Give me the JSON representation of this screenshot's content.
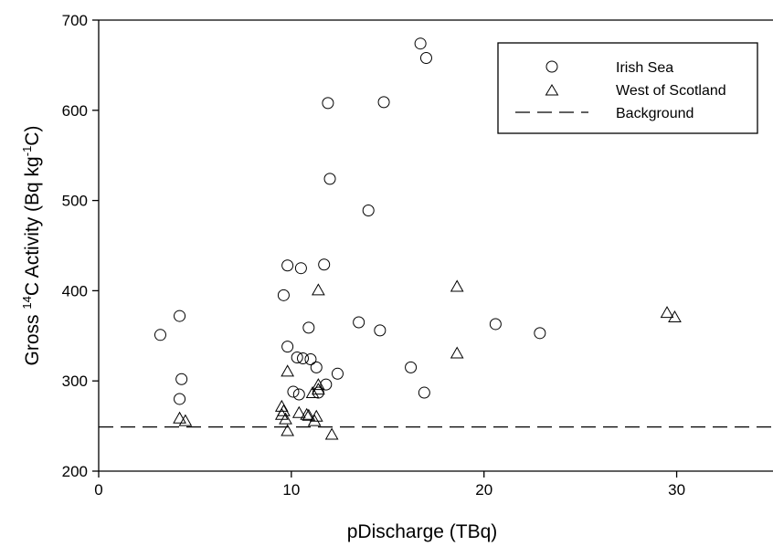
{
  "chart_data": {
    "type": "scatter",
    "xlabel": "pDischarge (TBq)",
    "ylabel_parts": [
      "Gross ",
      "14",
      "C Activity (Bq kg",
      "-1",
      "C)"
    ],
    "xlim": [
      0,
      35
    ],
    "ylim": [
      200,
      700
    ],
    "xticks": [
      0,
      10,
      20,
      30
    ],
    "yticks": [
      200,
      300,
      400,
      500,
      600,
      700
    ],
    "grid": false,
    "legend_position": "top-right",
    "series": [
      {
        "name": "Irish Sea",
        "marker": "circle",
        "points": [
          [
            3.2,
            351
          ],
          [
            4.2,
            372
          ],
          [
            4.3,
            302
          ],
          [
            4.2,
            280
          ],
          [
            9.6,
            395
          ],
          [
            9.8,
            428
          ],
          [
            9.8,
            338
          ],
          [
            10.1,
            288
          ],
          [
            10.3,
            326
          ],
          [
            10.4,
            285
          ],
          [
            10.5,
            425
          ],
          [
            10.6,
            325
          ],
          [
            10.9,
            359
          ],
          [
            11.0,
            324
          ],
          [
            11.3,
            315
          ],
          [
            11.4,
            287
          ],
          [
            11.7,
            429
          ],
          [
            11.8,
            296
          ],
          [
            11.9,
            608
          ],
          [
            12.0,
            524
          ],
          [
            12.4,
            308
          ],
          [
            13.5,
            365
          ],
          [
            14.0,
            489
          ],
          [
            14.6,
            356
          ],
          [
            14.8,
            609
          ],
          [
            16.2,
            315
          ],
          [
            16.7,
            674
          ],
          [
            16.9,
            287
          ],
          [
            17.0,
            658
          ],
          [
            20.6,
            363
          ],
          [
            22.9,
            353
          ]
        ]
      },
      {
        "name": "West of Scotland",
        "marker": "triangle",
        "points": [
          [
            4.2,
            258
          ],
          [
            4.5,
            255
          ],
          [
            9.5,
            271
          ],
          [
            9.5,
            262
          ],
          [
            9.6,
            266
          ],
          [
            9.7,
            257
          ],
          [
            9.8,
            244
          ],
          [
            9.8,
            310
          ],
          [
            10.4,
            264
          ],
          [
            10.8,
            262
          ],
          [
            10.9,
            261
          ],
          [
            11.1,
            286
          ],
          [
            11.2,
            255
          ],
          [
            11.3,
            260
          ],
          [
            11.4,
            290
          ],
          [
            11.4,
            295
          ],
          [
            11.4,
            400
          ],
          [
            12.1,
            240
          ],
          [
            18.6,
            404
          ],
          [
            18.6,
            330
          ],
          [
            29.5,
            375
          ],
          [
            29.9,
            370
          ]
        ]
      }
    ],
    "reference_lines": [
      {
        "name": "Background",
        "y": 249,
        "style": "dashed"
      }
    ]
  }
}
